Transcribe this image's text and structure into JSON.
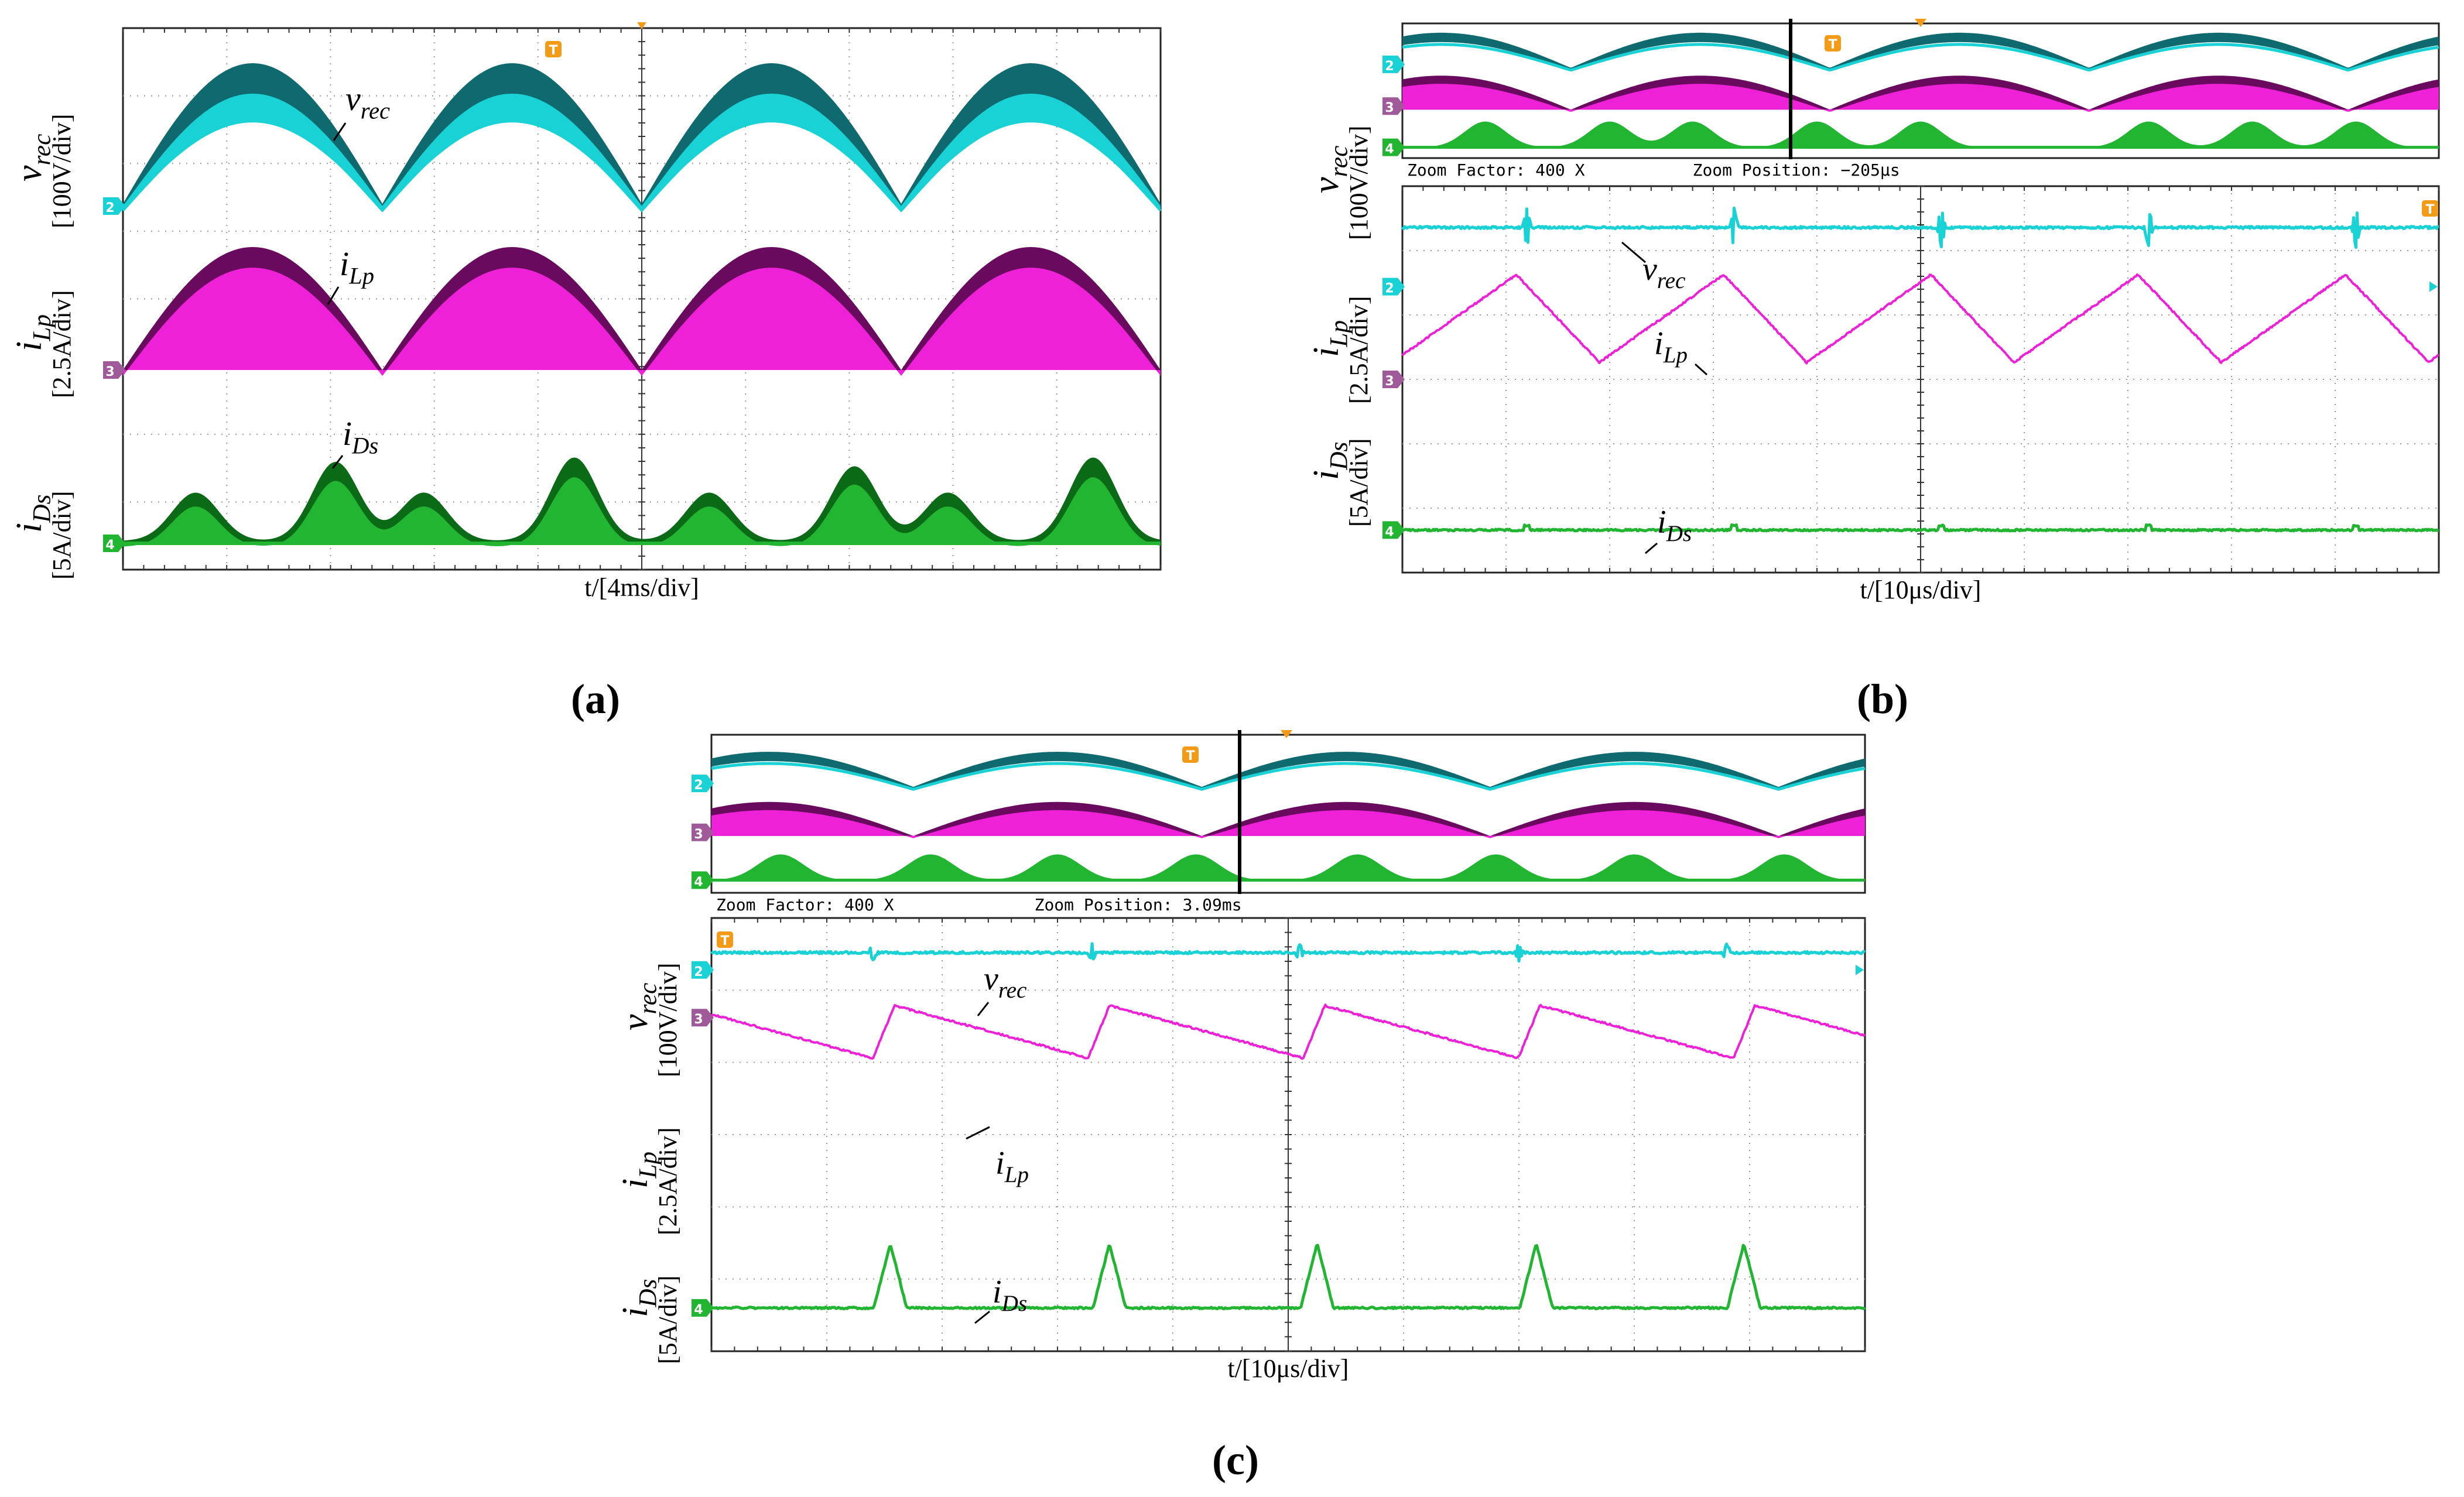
{
  "figure": {
    "panel_labels": {
      "a": "(a)",
      "b": "(b)",
      "c": "(c)"
    }
  },
  "colors": {
    "vrec": "#19d2d6",
    "vrec_dark": "#0e6a6e",
    "iLp": "#ee20d8",
    "iLp_dark": "#6a0a5e",
    "iDs": "#21b531",
    "iDs_dark": "#0b6a16",
    "trigger": "#f39a17",
    "grid": "#9a9a9a",
    "frame": "#222222"
  },
  "chart_data": [
    {
      "panel": "a",
      "type": "line",
      "time_axis": {
        "label": "t/[4ms/div]",
        "divisions": 10
      },
      "channels": [
        {
          "marker": "2",
          "symbol": "v",
          "sub": "rec",
          "scale": "[100V/div]",
          "annotation": "v_rec"
        },
        {
          "marker": "3",
          "symbol": "i",
          "sub": "Lp",
          "scale": "[2.5A/div]",
          "annotation": "i_Lp"
        },
        {
          "marker": "4",
          "symbol": "i",
          "sub": "Ds",
          "scale": "[5A/div]",
          "annotation": "i_Ds"
        }
      ],
      "trigger_marker": "T"
    },
    {
      "panel": "b",
      "type": "line",
      "time_axis": {
        "label": "t/[10μs/div]",
        "divisions": 10
      },
      "zoom_factor": "Zoom Factor: 400 X",
      "zoom_position": "Zoom Position: −205μs",
      "channels": [
        {
          "marker": "2",
          "symbol": "v",
          "sub": "rec",
          "scale": "[100V/div]",
          "annotation": "v_rec"
        },
        {
          "marker": "3",
          "symbol": "i",
          "sub": "Lp",
          "scale": "[2.5A/div]",
          "annotation": "i_Lp"
        },
        {
          "marker": "4",
          "symbol": "i",
          "sub": "Ds",
          "scale": "[5A/div]",
          "annotation": "i_Ds"
        }
      ],
      "trigger_marker": "T"
    },
    {
      "panel": "c",
      "type": "line",
      "time_axis": {
        "label": "t/[10μs/div]",
        "divisions": 10
      },
      "zoom_factor": "Zoom Factor: 400 X",
      "zoom_position": "Zoom Position: 3.09ms",
      "channels": [
        {
          "marker": "2",
          "symbol": "v",
          "sub": "rec",
          "scale": "[100V/div]",
          "annotation": "v_rec"
        },
        {
          "marker": "3",
          "symbol": "i",
          "sub": "Lp",
          "scale": "[2.5A/div]",
          "annotation": "i_Lp"
        },
        {
          "marker": "4",
          "symbol": "i",
          "sub": "Ds",
          "scale": "[5A/div]",
          "annotation": "i_Ds"
        }
      ],
      "trigger_marker": "T"
    }
  ]
}
